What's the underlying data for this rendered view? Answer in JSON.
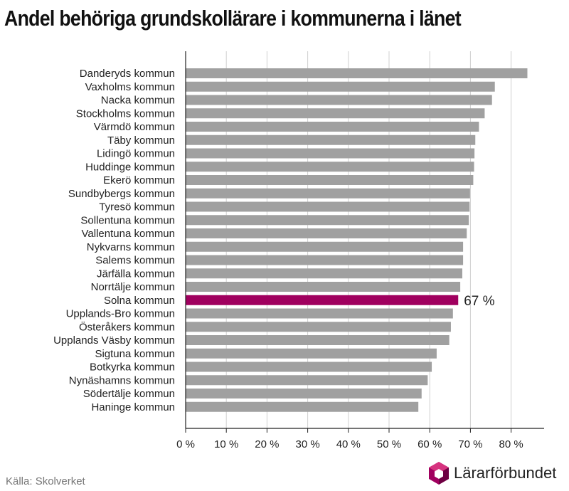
{
  "title": "Andel behöriga grundskollärare i kommunerna i länet",
  "source": "Källa: Skolverket",
  "logo_text": "Lärarförbundet",
  "colors": {
    "bar": "#a0a0a0",
    "highlight": "#a0005f",
    "grid": "#d0d0d0",
    "axis": "#222222"
  },
  "chart_data": {
    "type": "bar",
    "orientation": "horizontal",
    "categories": [
      "Danderyds kommun",
      "Vaxholms kommun",
      "Nacka kommun",
      "Stockholms kommun",
      "Värmdö kommun",
      "Täby kommun",
      "Lidingö kommun",
      "Huddinge kommun",
      "Ekerö kommun",
      "Sundbybergs kommun",
      "Tyresö kommun",
      "Sollentuna kommun",
      "Vallentuna kommun",
      "Nykvarns kommun",
      "Salems kommun",
      "Järfälla kommun",
      "Norrtälje kommun",
      "Solna kommun",
      "Upplands-Bro kommun",
      "Österåkers kommun",
      "Upplands Väsby kommun",
      "Sigtuna kommun",
      "Botkyrka kommun",
      "Nynäshamns kommun",
      "Södertälje kommun",
      "Haninge kommun"
    ],
    "values": [
      84,
      76,
      75.3,
      73.5,
      72.1,
      71.2,
      71,
      70.9,
      70.7,
      69.9,
      69.8,
      69.6,
      69.1,
      68.2,
      68.2,
      68,
      67.5,
      67,
      65.7,
      65.2,
      64.8,
      61.7,
      60.5,
      59.5,
      58,
      57.2
    ],
    "highlight_category": "Solna kommun",
    "highlight_label": "67 %",
    "xlim": [
      0,
      88
    ],
    "xticks": [
      0,
      10,
      20,
      30,
      40,
      50,
      60,
      70,
      80
    ],
    "xtick_labels": [
      "0 %",
      "10 %",
      "20 %",
      "30 %",
      "40 %",
      "50 %",
      "60 %",
      "70 %",
      "80 %"
    ],
    "grid": true,
    "xlabel": "",
    "ylabel": ""
  }
}
